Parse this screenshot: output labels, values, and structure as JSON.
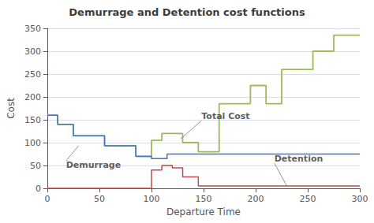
{
  "chart_data": {
    "type": "line",
    "title": "Demurrage and Detention cost functions",
    "xlabel": "Departure Time",
    "ylabel": "Cost",
    "xlim": [
      0,
      300
    ],
    "ylim": [
      0,
      350
    ],
    "xticks": [
      0,
      50,
      100,
      150,
      200,
      250,
      300
    ],
    "yticks": [
      0,
      50,
      100,
      150,
      200,
      250,
      300,
      350
    ],
    "grid": true,
    "series": [
      {
        "color": "#9BBB59",
        "x": [
          0,
          10,
          10,
          25,
          25,
          40,
          40,
          55,
          55,
          70,
          70,
          85,
          85,
          100,
          100,
          110,
          110,
          120,
          120,
          130,
          130,
          145,
          145,
          155,
          155,
          165,
          165,
          180,
          180,
          195,
          195,
          210,
          210,
          225,
          225,
          240,
          240,
          255,
          255,
          265,
          265,
          275,
          275,
          290,
          290,
          300
        ],
        "values": [
          160,
          160,
          140,
          140,
          115,
          115,
          115,
          115,
          93,
          93,
          93,
          93,
          70,
          70,
          105,
          105,
          120,
          120,
          120,
          120,
          100,
          100,
          80,
          80,
          80,
          80,
          185,
          185,
          185,
          185,
          225,
          225,
          185,
          185,
          260,
          260,
          260,
          260,
          300,
          300,
          300,
          300,
          335,
          335,
          335,
          335
        ]
      },
      {
        "color": "#4472C4",
        "x": [
          0,
          10,
          10,
          25,
          25,
          40,
          40,
          55,
          55,
          70,
          70,
          85,
          85,
          100,
          100,
          115,
          115,
          130,
          130,
          150,
          150,
          300
        ],
        "values": [
          160,
          160,
          140,
          140,
          115,
          115,
          115,
          115,
          93,
          93,
          93,
          93,
          70,
          70,
          65,
          65,
          75,
          75,
          75,
          75,
          75,
          75
        ]
      },
      {
        "color": "#BE4B48",
        "x": [
          0,
          100,
          100,
          110,
          110,
          120,
          120,
          130,
          130,
          145,
          145,
          155,
          155,
          300
        ],
        "values": [
          0,
          0,
          40,
          40,
          50,
          50,
          45,
          45,
          25,
          25,
          5,
          5,
          5,
          5
        ]
      }
    ],
    "annotations": [
      {
        "text": "Total Cost",
        "xy": [
          128,
          108
        ],
        "xytext": [
          148,
          148
        ]
      },
      {
        "text": "Demurrage",
        "xy": [
          30,
          93
        ],
        "xytext": [
          18,
          60
        ]
      },
      {
        "text": "Detention",
        "xy": [
          230,
          5
        ],
        "xytext": [
          218,
          55
        ]
      }
    ]
  }
}
